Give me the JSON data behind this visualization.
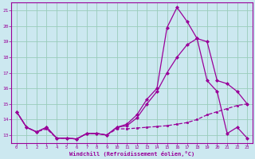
{
  "xlabel": "Windchill (Refroidissement éolien,°C)",
  "bg_color": "#cce8f0",
  "grid_color": "#99ccbb",
  "line_color": "#990099",
  "xlim": [
    -0.5,
    23.5
  ],
  "ylim": [
    12.5,
    21.5
  ],
  "xticks": [
    0,
    1,
    2,
    3,
    4,
    5,
    6,
    7,
    8,
    9,
    10,
    11,
    12,
    13,
    14,
    15,
    16,
    17,
    18,
    19,
    20,
    21,
    22,
    23
  ],
  "yticks": [
    13,
    14,
    15,
    16,
    17,
    18,
    19,
    20,
    21
  ],
  "line1_x": [
    0,
    1,
    2,
    3,
    4,
    5,
    6,
    7,
    8,
    9,
    10,
    11,
    12,
    13,
    14,
    15,
    16,
    17,
    18,
    19,
    20,
    21,
    22,
    23
  ],
  "line1_y": [
    14.5,
    13.5,
    13.2,
    13.4,
    12.8,
    12.8,
    12.75,
    13.1,
    13.1,
    13.0,
    13.4,
    13.4,
    13.45,
    13.5,
    13.55,
    13.6,
    13.7,
    13.8,
    14.0,
    14.3,
    14.5,
    14.7,
    14.9,
    15.0
  ],
  "line2_x": [
    0,
    1,
    2,
    3,
    4,
    5,
    6,
    7,
    8,
    9,
    10,
    11,
    12,
    13,
    14,
    15,
    16,
    17,
    18,
    19,
    20,
    21,
    22,
    23
  ],
  "line2_y": [
    14.5,
    13.5,
    13.2,
    13.5,
    12.8,
    12.8,
    12.75,
    13.1,
    13.1,
    13.0,
    13.5,
    13.6,
    14.1,
    15.0,
    15.8,
    17.0,
    18.0,
    18.8,
    19.2,
    19.0,
    16.5,
    16.3,
    15.8,
    15.0
  ],
  "line3_x": [
    0,
    1,
    2,
    3,
    4,
    5,
    6,
    7,
    8,
    9,
    10,
    11,
    12,
    13,
    14,
    15,
    16,
    17,
    18,
    19,
    20,
    21,
    22,
    23
  ],
  "line3_y": [
    14.5,
    13.5,
    13.2,
    13.5,
    12.8,
    12.8,
    12.75,
    13.1,
    13.1,
    13.0,
    13.5,
    13.7,
    14.3,
    15.3,
    16.0,
    19.9,
    21.2,
    20.3,
    19.2,
    16.5,
    15.8,
    13.1,
    13.5,
    12.8
  ],
  "figsize": [
    3.2,
    2.0
  ],
  "dpi": 100
}
